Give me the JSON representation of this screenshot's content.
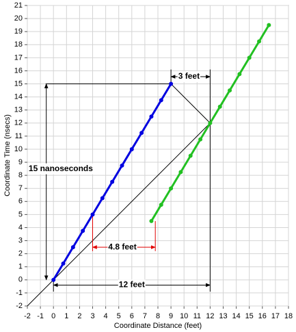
{
  "chart_data": {
    "type": "line",
    "x_label": "Coordinate Distance (feet)",
    "y_label": "Coordinate Time (nsecs)",
    "xlim": [
      -2,
      18
    ],
    "ylim": [
      -2,
      21
    ],
    "xticks": [
      -2,
      -1,
      0,
      1,
      2,
      3,
      4,
      5,
      6,
      7,
      8,
      9,
      10,
      11,
      12,
      13,
      14,
      15,
      16,
      17,
      18
    ],
    "yticks": [
      -2,
      -1,
      0,
      1,
      2,
      3,
      4,
      5,
      6,
      7,
      8,
      9,
      10,
      11,
      12,
      13,
      14,
      15,
      16,
      17,
      18,
      19,
      20,
      21
    ],
    "grid": true,
    "series": [
      {
        "color": "#0000e0",
        "x": [
          0,
          0.75,
          1.5,
          2.25,
          3,
          3.75,
          4.5,
          5.25,
          6,
          6.75,
          7.5,
          8.25,
          9
        ],
        "values": [
          0,
          1.25,
          2.5,
          3.75,
          5,
          6.25,
          7.5,
          8.75,
          10,
          11.25,
          12.5,
          13.75,
          15
        ]
      },
      {
        "color": "#22c022",
        "x": [
          7.5,
          8.25,
          9,
          9.75,
          10.5,
          11.25,
          12,
          12.75,
          13.5,
          14.25,
          15,
          15.75,
          16.5
        ],
        "values": [
          4.5,
          5.75,
          7,
          8.25,
          9.5,
          10.75,
          12,
          13.25,
          14.5,
          15.75,
          17,
          18.25,
          19.5
        ]
      }
    ],
    "annotations": [
      "3 feet",
      "15 nanoseconds",
      "4.8 feet",
      "12 feet"
    ]
  }
}
